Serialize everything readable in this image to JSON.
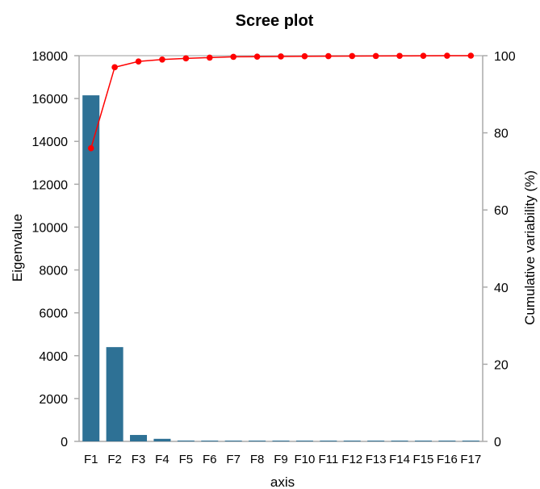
{
  "chart_data": {
    "type": "bar",
    "title": "Scree plot",
    "xlabel": "axis",
    "ylabel": "Eigenvalue",
    "y2label": "Cumulative variability (%)",
    "categories": [
      "F1",
      "F2",
      "F3",
      "F4",
      "F5",
      "F6",
      "F7",
      "F8",
      "F9",
      "F10",
      "F11",
      "F12",
      "F13",
      "F14",
      "F15",
      "F16",
      "F17"
    ],
    "ylim": [
      0,
      18000
    ],
    "y2lim": [
      0,
      100
    ],
    "yticks": [
      0,
      2000,
      4000,
      6000,
      8000,
      10000,
      12000,
      14000,
      16000,
      18000
    ],
    "y2ticks": [
      0,
      20,
      40,
      60,
      80,
      100
    ],
    "series": [
      {
        "type": "bar",
        "axis": "left",
        "values": [
          16150,
          4400,
          300,
          120,
          40,
          25,
          20,
          15,
          12,
          10,
          8,
          7,
          6,
          5,
          4,
          3,
          2
        ]
      },
      {
        "type": "line",
        "axis": "right",
        "values": [
          76,
          97,
          98.5,
          99,
          99.3,
          99.5,
          99.7,
          99.75,
          99.8,
          99.85,
          99.88,
          99.9,
          99.92,
          99.95,
          99.97,
          99.99,
          100
        ]
      }
    ],
    "colors": {
      "bars": "#2e7195",
      "line": "#ff0000",
      "markers": "#ff0000",
      "axis": "#aaaaaa",
      "top_border": "#bbbbbb",
      "text": "#000000"
    },
    "grid": false,
    "legend": "none"
  }
}
